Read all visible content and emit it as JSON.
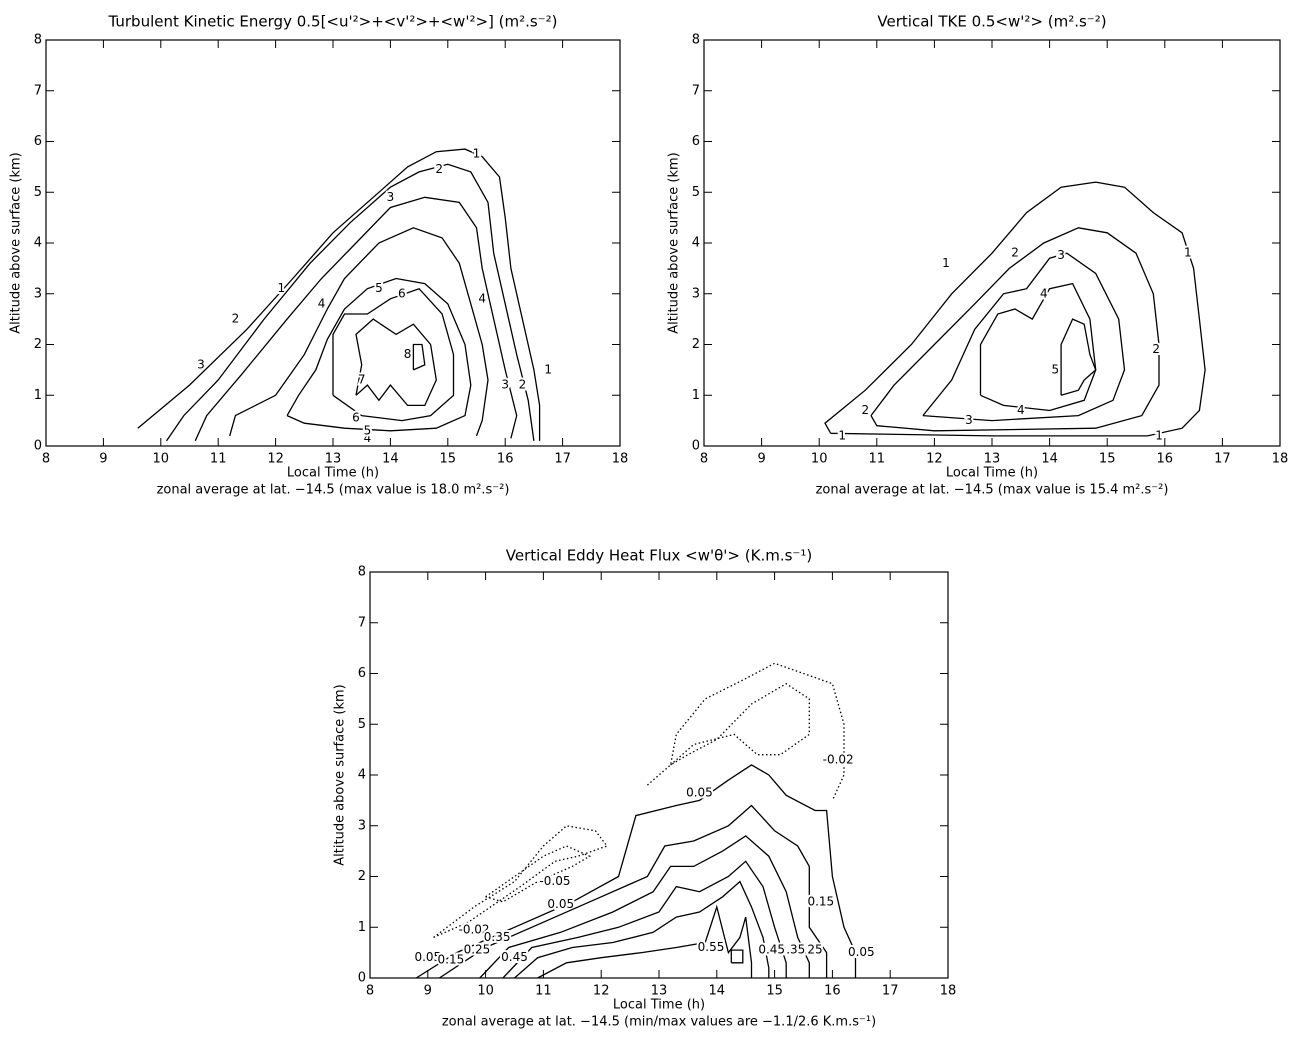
{
  "chart_data": [
    {
      "type": "contour",
      "title": "Turbulent Kinetic Energy 0.5[<u'²>+<v'²>+<w'²>] (m².s⁻²)",
      "xlabel": "Local Time (h)",
      "ylabel": "Altitude above surface (km)",
      "note": "zonal average at lat. −14.5 (max value is 18.0 m².s⁻²)",
      "xlim": [
        8,
        18
      ],
      "ylim": [
        0,
        8
      ],
      "xticks": [
        8,
        9,
        10,
        11,
        12,
        13,
        14,
        15,
        16,
        17,
        18
      ],
      "yticks": [
        0,
        1,
        2,
        3,
        4,
        5,
        6,
        7,
        8
      ],
      "color": "#000000",
      "contours": [
        {
          "level": 1,
          "style": "solid",
          "x": [
            9.6,
            10.5,
            11.5,
            12.3,
            13,
            13.8,
            14.3,
            14.8,
            15.3,
            15.6,
            15.9,
            16.0,
            16.1,
            16.3,
            16.5,
            16.6,
            16.6
          ],
          "y": [
            0.35,
            1.2,
            2.3,
            3.3,
            4.2,
            5.0,
            5.5,
            5.8,
            5.85,
            5.7,
            5.3,
            4.5,
            3.5,
            2.5,
            1.5,
            0.8,
            0.1
          ],
          "label_x": [
            12.1,
            15.5,
            16.75
          ],
          "label_y": [
            3.1,
            5.75,
            1.5
          ]
        },
        {
          "level": 2,
          "style": "solid",
          "x": [
            10.1,
            10.4,
            11,
            11.8,
            12.6,
            13.3,
            14,
            14.5,
            15,
            15.4,
            15.7,
            15.8,
            16,
            16.2,
            16.4,
            16.5
          ],
          "y": [
            0.1,
            0.6,
            1.3,
            2.5,
            3.6,
            4.4,
            5.1,
            5.4,
            5.55,
            5.4,
            4.8,
            3.8,
            2.8,
            1.8,
            0.9,
            0.1
          ],
          "label_x": [
            11.3,
            14.85,
            16.3
          ],
          "label_y": [
            2.5,
            5.45,
            1.2
          ]
        },
        {
          "level": 3,
          "style": "solid",
          "x": [
            10.6,
            10.8,
            11.4,
            12.2,
            12.8,
            13.4,
            14,
            14.6,
            15.2,
            15.5,
            15.6,
            15.8,
            16,
            16.2,
            16.1
          ],
          "y": [
            0.1,
            0.6,
            1.4,
            2.5,
            3.3,
            4.0,
            4.7,
            4.9,
            4.8,
            4.3,
            3.5,
            2.5,
            1.5,
            0.6,
            0.15
          ],
          "label_x": [
            10.7,
            14.0,
            16.0
          ],
          "label_y": [
            1.6,
            4.9,
            1.2
          ]
        },
        {
          "level": 4,
          "style": "solid",
          "x": [
            11.2,
            11.3,
            12,
            12.5,
            12.9,
            13.2,
            13.8,
            14.4,
            14.9,
            15.2,
            15.4,
            15.6,
            15.7,
            15.6,
            15.5
          ],
          "y": [
            0.2,
            0.6,
            1.0,
            1.8,
            2.7,
            3.3,
            4.0,
            4.3,
            4.1,
            3.6,
            2.8,
            2.0,
            1.3,
            0.5,
            0.2
          ],
          "label_x": [
            12.8,
            15.6,
            13.6
          ],
          "label_y": [
            2.8,
            2.9,
            0.15
          ]
        },
        {
          "level": 5,
          "style": "solid",
          "x": [
            12.2,
            12.4,
            12.7,
            12.9,
            13.2,
            13.6,
            14.1,
            14.6,
            15,
            15.3,
            15.4,
            15.3,
            14.8,
            14,
            13.2,
            12.5,
            12.2
          ],
          "y": [
            0.6,
            1.0,
            1.5,
            2.1,
            2.7,
            3.1,
            3.3,
            3.2,
            2.8,
            2.0,
            1.2,
            0.6,
            0.35,
            0.3,
            0.35,
            0.45,
            0.6
          ],
          "label_x": [
            13.8,
            13.6
          ],
          "label_y": [
            3.1,
            0.3
          ]
        },
        {
          "level": 6,
          "style": "solid",
          "x": [
            13,
            13,
            13.2,
            13.6,
            14,
            14.5,
            14.9,
            15.1,
            15.1,
            14.7,
            14.2,
            13.5,
            13
          ],
          "y": [
            1.0,
            2.2,
            2.6,
            2.6,
            2.9,
            3.1,
            2.6,
            1.8,
            1.0,
            0.6,
            0.5,
            0.6,
            1.0
          ],
          "label_x": [
            14.2,
            13.4
          ],
          "label_y": [
            3.0,
            0.55
          ]
        },
        {
          "level": 7,
          "style": "solid",
          "x": [
            13.4,
            13.5,
            13.4,
            13.7,
            14.1,
            14.4,
            14.7,
            14.8,
            14.6,
            14.3,
            14.0,
            13.8,
            13.6,
            13.4
          ],
          "y": [
            1.0,
            1.6,
            2.2,
            2.5,
            2.2,
            2.4,
            2.0,
            1.3,
            0.8,
            0.8,
            1.2,
            0.9,
            1.2,
            1.0
          ],
          "label_x": [
            13.5
          ],
          "label_y": [
            1.3
          ]
        },
        {
          "level": 8,
          "style": "solid",
          "x": [
            14.4,
            14.4,
            14.55,
            14.6,
            14.4
          ],
          "y": [
            1.5,
            2.0,
            2.0,
            1.6,
            1.5
          ],
          "label_x": [
            14.3
          ],
          "label_y": [
            1.8
          ]
        }
      ]
    },
    {
      "type": "contour",
      "title": "Vertical TKE 0.5<w'²> (m².s⁻²)",
      "xlabel": "Local Time (h)",
      "ylabel": "Altitude above surface (km)",
      "note": "zonal average at lat. −14.5 (max value is 15.4 m².s⁻²)",
      "xlim": [
        8,
        18
      ],
      "ylim": [
        0,
        8
      ],
      "xticks": [
        8,
        9,
        10,
        11,
        12,
        13,
        14,
        15,
        16,
        17,
        18
      ],
      "yticks": [
        0,
        1,
        2,
        3,
        4,
        5,
        6,
        7,
        8
      ],
      "color": "#000000",
      "contours": [
        {
          "level": 1,
          "style": "solid",
          "x": [
            10.2,
            10.1,
            10.8,
            11.6,
            12.3,
            13,
            13.6,
            14.2,
            14.8,
            15.3,
            15.8,
            16.3,
            16.5,
            16.6,
            16.7,
            16.6,
            16.3,
            15.7,
            13,
            10.2
          ],
          "y": [
            0.25,
            0.45,
            1.1,
            2.0,
            3.0,
            3.8,
            4.6,
            5.1,
            5.2,
            5.1,
            4.6,
            4.2,
            3.5,
            2.5,
            1.5,
            0.7,
            0.35,
            0.2,
            0.2,
            0.25
          ],
          "label_x": [
            12.2,
            16.4,
            10.4,
            15.9
          ],
          "label_y": [
            3.6,
            3.8,
            0.2,
            0.2
          ]
        },
        {
          "level": 2,
          "style": "solid",
          "x": [
            10.9,
            11.3,
            12,
            12.7,
            13.3,
            13.9,
            14.5,
            15,
            15.5,
            15.8,
            15.9,
            15.9,
            15.6,
            14.8,
            12,
            11,
            10.9
          ],
          "y": [
            0.6,
            1.2,
            2.0,
            2.8,
            3.5,
            4.0,
            4.3,
            4.2,
            3.8,
            3.0,
            2.0,
            1.2,
            0.6,
            0.35,
            0.3,
            0.4,
            0.6
          ],
          "label_x": [
            10.8,
            13.4,
            15.85
          ],
          "label_y": [
            0.7,
            3.8,
            1.9
          ]
        },
        {
          "level": 3,
          "style": "solid",
          "x": [
            11.8,
            12.3,
            12.7,
            13.2,
            13.6,
            14,
            14.3,
            14.8,
            15.2,
            15.3,
            15.1,
            14.5,
            13,
            11.8
          ],
          "y": [
            0.6,
            1.3,
            2.3,
            3.0,
            3.1,
            3.7,
            3.8,
            3.4,
            2.5,
            1.5,
            0.9,
            0.6,
            0.5,
            0.6
          ],
          "label_x": [
            12.6,
            14.2
          ],
          "label_y": [
            0.5,
            3.75
          ]
        },
        {
          "level": 4,
          "style": "solid",
          "x": [
            12.8,
            12.8,
            13.1,
            13.4,
            13.7,
            14,
            14.4,
            14.7,
            14.8,
            14.6,
            14,
            13.2,
            12.8
          ],
          "y": [
            1.0,
            2.0,
            2.6,
            2.7,
            2.5,
            3.1,
            3.2,
            2.5,
            1.5,
            0.9,
            0.7,
            0.8,
            1.0
          ],
          "label_x": [
            13.9,
            13.5
          ],
          "label_y": [
            3.0,
            0.7
          ]
        },
        {
          "level": 5,
          "style": "solid",
          "x": [
            14.2,
            14.2,
            14.4,
            14.6,
            14.7,
            14.8,
            14.6,
            14.5,
            14.2
          ],
          "y": [
            1.0,
            2.0,
            2.5,
            2.4,
            1.8,
            1.5,
            1.3,
            1.1,
            1.0
          ],
          "label_x": [
            14.1
          ],
          "label_y": [
            1.5
          ]
        }
      ]
    },
    {
      "type": "contour",
      "title": "Vertical Eddy Heat Flux <w'θ'> (K.m.s⁻¹)",
      "xlabel": "Local Time (h)",
      "ylabel": "Altitude above surface (km)",
      "note": "zonal average at lat. −14.5 (min/max values are  −1.1/2.6 K.m.s⁻¹)",
      "xlim": [
        8,
        18
      ],
      "ylim": [
        0,
        8
      ],
      "xticks": [
        8,
        9,
        10,
        11,
        12,
        13,
        14,
        15,
        16,
        17,
        18
      ],
      "yticks": [
        0,
        1,
        2,
        3,
        4,
        5,
        6,
        7,
        8
      ],
      "color": "#000000",
      "contours": [
        {
          "level": -0.05,
          "style": "dotted",
          "x": [
            10,
            10.5,
            11,
            11.4,
            11.8,
            11.5,
            10.9,
            10.3,
            10,
            null,
            13.2,
            13.6,
            14.3,
            14.7,
            15.1,
            15.6,
            15.6,
            15.2,
            14.6,
            14,
            13.5,
            13.2
          ],
          "y": [
            1.6,
            2.0,
            2.4,
            2.6,
            2.4,
            2.2,
            1.9,
            1.5,
            1.6,
            null,
            4.2,
            4.6,
            4.8,
            4.4,
            4.4,
            4.8,
            5.5,
            5.8,
            5.4,
            4.7,
            4.4,
            4.2
          ],
          "label_x": [
            11.2
          ],
          "label_y": [
            1.9
          ]
        },
        {
          "level": -0.02,
          "style": "dotted",
          "x": [
            9.1,
            9.8,
            10.5,
            11,
            11.4,
            11.9,
            12.1,
            11.6,
            11.2,
            10.6,
            9.7,
            9.1,
            null,
            12.8,
            13.2,
            13.3,
            13.8,
            14.5,
            15,
            15.5,
            16,
            16.2,
            16.2,
            16.0
          ],
          "y": [
            0.8,
            1.4,
            1.9,
            2.6,
            3.0,
            2.9,
            2.6,
            2.4,
            2.3,
            1.8,
            1.1,
            0.8,
            null,
            3.8,
            4.2,
            4.8,
            5.5,
            5.9,
            6.2,
            6.0,
            5.8,
            5.0,
            4.0,
            3.5
          ],
          "label_x": [
            9.8,
            16.1
          ],
          "label_y": [
            0.95,
            4.3
          ]
        },
        {
          "level": 0.05,
          "style": "solid",
          "x": [
            8.8,
            9.5,
            10.5,
            11.5,
            12.3,
            12.6,
            13.3,
            13.7,
            14.2,
            14.6,
            14.9,
            15.2,
            15.7,
            15.9,
            16.0,
            16.2,
            16.4,
            16.4
          ],
          "y": [
            0,
            0.5,
            1.0,
            1.5,
            2.0,
            3.2,
            3.4,
            3.5,
            3.9,
            4.2,
            4.0,
            3.6,
            3.3,
            3.3,
            2.0,
            1.0,
            0.5,
            0
          ],
          "label_x": [
            9.0,
            11.3,
            13.7,
            16.5
          ],
          "label_y": [
            0.4,
            1.45,
            3.65,
            0.5
          ]
        },
        {
          "level": 0.15,
          "style": "solid",
          "x": [
            9.2,
            10,
            11,
            12,
            12.8,
            13.1,
            13.6,
            14.2,
            14.6,
            15,
            15.4,
            15.6,
            15.6,
            15.9,
            15.9
          ],
          "y": [
            0,
            0.6,
            1.1,
            1.6,
            2.0,
            2.6,
            2.7,
            3.0,
            3.4,
            2.9,
            2.6,
            2.2,
            1.0,
            0.5,
            0
          ],
          "label_x": [
            9.4,
            15.8
          ],
          "label_y": [
            0.35,
            1.5
          ]
        },
        {
          "level": 0.25,
          "style": "solid",
          "x": [
            9.9,
            10.4,
            11.3,
            12.2,
            12.9,
            13.2,
            13.6,
            14.1,
            14.5,
            14.9,
            15.2,
            15.4,
            15.6,
            15.6
          ],
          "y": [
            0,
            0.6,
            0.9,
            1.3,
            1.7,
            2.2,
            2.2,
            2.5,
            2.8,
            2.4,
            1.7,
            0.8,
            0.3,
            0
          ],
          "label_x": [
            9.85,
            15.6
          ],
          "label_y": [
            0.55,
            0.55
          ]
        },
        {
          "level": 0.35,
          "style": "solid",
          "x": [
            10.3,
            10.8,
            11.6,
            12.3,
            13,
            13.3,
            13.7,
            14.2,
            14.5,
            14.8,
            15,
            15.2,
            15.2
          ],
          "y": [
            0,
            0.6,
            0.8,
            1.0,
            1.3,
            1.8,
            1.7,
            2.0,
            2.3,
            1.8,
            1.0,
            0.3,
            0
          ],
          "label_x": [
            10.2,
            15.3
          ],
          "label_y": [
            0.8,
            0.55
          ]
        },
        {
          "level": 0.45,
          "style": "solid",
          "x": [
            10.5,
            10.9,
            11.5,
            12.2,
            12.9,
            13.3,
            13.7,
            14.1,
            14.4,
            14.6,
            14.8,
            14.9,
            14.9
          ],
          "y": [
            0,
            0.4,
            0.6,
            0.7,
            0.9,
            1.2,
            1.3,
            1.6,
            1.9,
            1.4,
            0.8,
            0.2,
            0
          ],
          "label_x": [
            10.5,
            14.95
          ],
          "label_y": [
            0.4,
            0.55
          ]
        },
        {
          "level": 0.55,
          "style": "solid",
          "x": [
            10.9,
            11.4,
            12,
            12.7,
            13.3,
            13.8,
            14.0,
            14.2,
            14.4,
            14.5,
            14.6,
            14.6,
            null,
            14.25,
            14.25,
            14.45,
            14.45,
            14.25
          ],
          "y": [
            0,
            0.3,
            0.4,
            0.5,
            0.6,
            0.7,
            1.4,
            0.5,
            0.8,
            1.2,
            0.3,
            0,
            null,
            0.3,
            0.55,
            0.55,
            0.3,
            0.3
          ],
          "label_x": [
            13.9
          ],
          "label_y": [
            0.6
          ]
        }
      ]
    }
  ]
}
